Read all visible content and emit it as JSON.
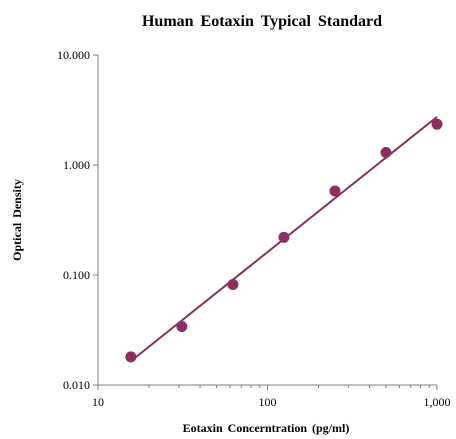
{
  "chart_data": {
    "type": "scatter",
    "title": "Human  Eotaxin  Typical  Standard",
    "xlabel": "Eotaxin  Concerntration  (pg/ml)",
    "ylabel": "Optical  Density",
    "xscale": "log",
    "yscale": "log",
    "xlim": [
      10,
      1000
    ],
    "ylim": [
      0.01,
      10
    ],
    "x_ticks": [
      "10",
      "100",
      "1,000"
    ],
    "y_ticks": [
      "0.010",
      "0.100",
      "1.000",
      "10.000"
    ],
    "grid": false,
    "legend": "none",
    "marker_color": "#8b2f5e",
    "trendline_color": "#8b2f5e",
    "trendline": "power",
    "series": [
      {
        "x": [
          15.625,
          31.25,
          62.5,
          125,
          250,
          500,
          1000
        ],
        "y": [
          0.018,
          0.034,
          0.082,
          0.22,
          0.58,
          1.3,
          2.35
        ]
      }
    ],
    "trendline_x_range": [
      15.625,
      1000
    ]
  }
}
